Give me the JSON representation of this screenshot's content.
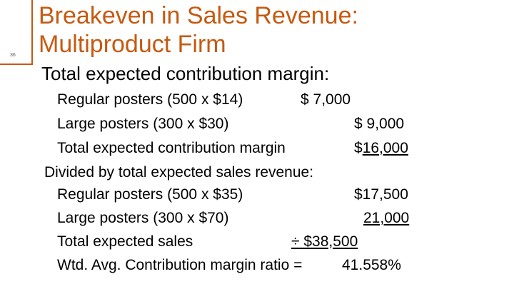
{
  "slide": {
    "number": "36",
    "accent_color": "#c55a11",
    "title_line1": "Breakeven in Sales Revenue:",
    "title_line2": "Multiproduct Firm",
    "heading": "Total expected contribution margin:"
  },
  "contribution": {
    "regular_label": "Regular posters (500 x $14)",
    "regular_value": "$  7,000",
    "large_label": "Large posters (300 x $30)",
    "large_value": "$  9,000",
    "total_label": "Total expected contribution margin",
    "total_value": "$16,000"
  },
  "sales": {
    "divider_label": "Divided by total expected sales revenue:",
    "regular_label": "Regular posters (500 x $35)",
    "regular_value": "$17,500",
    "large_label": "Large posters (300 x $70)",
    "large_value": "21,000",
    "total_label": "Total expected sales",
    "total_value": "÷ $38,500"
  },
  "result": {
    "label": "Wtd. Avg. Contribution margin ratio =",
    "value": "41.558%"
  }
}
